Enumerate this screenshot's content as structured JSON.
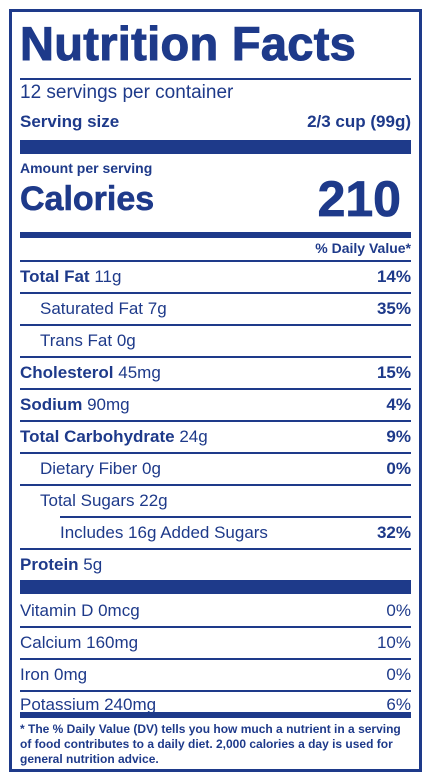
{
  "title": "Nutrition Facts",
  "servings_per_container": "12 servings per container",
  "serving_size": {
    "label": "Serving size",
    "value": "2/3 cup (99g)"
  },
  "amount_per_serving": "Amount per serving",
  "calories": {
    "label": "Calories",
    "value": "210"
  },
  "daily_value_header": "% Daily Value*",
  "nutrients": [
    {
      "name": "Total Fat",
      "amount": "11g",
      "dv": "14%"
    },
    {
      "name": "Saturated Fat",
      "amount": "7g",
      "dv": "35%"
    },
    {
      "name": "Trans Fat",
      "amount": "0g",
      "dv": ""
    },
    {
      "name": "Cholesterol",
      "amount": "45mg",
      "dv": "15%"
    },
    {
      "name": "Sodium",
      "amount": "90mg",
      "dv": "4%"
    },
    {
      "name": "Total Carbohydrate",
      "amount": "24g",
      "dv": "9%"
    },
    {
      "name": "Dietary Fiber",
      "amount": "0g",
      "dv": "0%"
    },
    {
      "name": "Total Sugars",
      "amount": "22g",
      "dv": ""
    },
    {
      "name": "Includes 16g Added Sugars",
      "amount": "",
      "dv": "32%"
    },
    {
      "name": "Protein",
      "amount": "5g",
      "dv": ""
    }
  ],
  "vitamins": [
    {
      "name": "Vitamin D 0mcg",
      "dv": "0%"
    },
    {
      "name": "Calcium 160mg",
      "dv": "10%"
    },
    {
      "name": "Iron 0mg",
      "dv": "0%"
    },
    {
      "name": "Potassium 240mg",
      "dv": "6%"
    }
  ],
  "footnote": "* The % Daily Value (DV) tells you how much a nutrient in a serving of food contributes to a daily diet. 2,000 calories a day is used for general nutrition advice."
}
